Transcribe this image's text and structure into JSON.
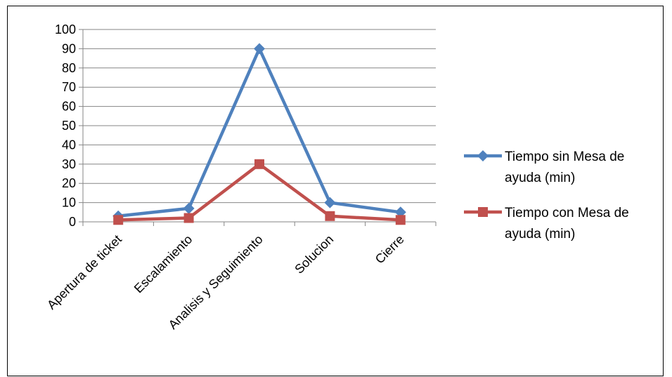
{
  "chart_data": {
    "type": "line",
    "categories": [
      "Apertura de ticket",
      "Escalamiento",
      "Analisis y Seguimiento",
      "Solucion",
      "Cierre"
    ],
    "series": [
      {
        "name": "Tiempo sin Mesa de ayuda (min)",
        "values": [
          3,
          7,
          90,
          10,
          5
        ],
        "color": "#4f81bd",
        "marker": "diamond"
      },
      {
        "name": "Tiempo con Mesa de ayuda (min)",
        "values": [
          1,
          2,
          30,
          3,
          1
        ],
        "color": "#c0504d",
        "marker": "square"
      }
    ],
    "ylim": [
      0,
      100
    ],
    "yticks": [
      0,
      10,
      20,
      30,
      40,
      50,
      60,
      70,
      80,
      90,
      100
    ],
    "grid": true,
    "legend_position": "right"
  }
}
